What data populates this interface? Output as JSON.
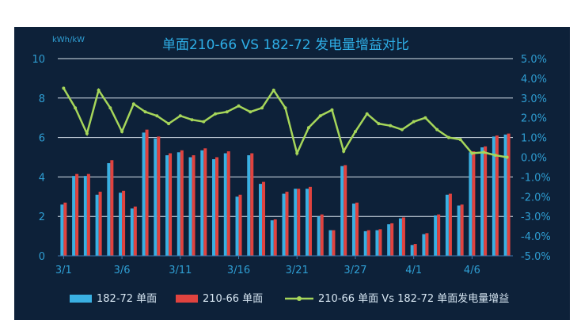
{
  "chart_data": {
    "type": "bar",
    "title": "单面210-66 VS 182-72 发电量增益对比",
    "y_unit_label": "kWh/kW",
    "ylim": [
      0,
      10
    ],
    "y_ticks": [
      "0",
      "2",
      "4",
      "6",
      "8",
      "10"
    ],
    "y2lim": [
      -5.0,
      5.0
    ],
    "y2_ticks": [
      "5.0%",
      "4.0%",
      "3.0%",
      "2.0%",
      "1.0%",
      "0.0%",
      "-1.0%",
      "-2.0%",
      "-3.0%",
      "-4.0%",
      "-5.0%"
    ],
    "x_tick_labels": [
      {
        "label": "3/1",
        "index": 0
      },
      {
        "label": "3/6",
        "index": 5
      },
      {
        "label": "3/11",
        "index": 10
      },
      {
        "label": "3/16",
        "index": 15
      },
      {
        "label": "3/21",
        "index": 20
      },
      {
        "label": "3/27",
        "index": 25
      },
      {
        "label": "4/1",
        "index": 30
      },
      {
        "label": "4/6",
        "index": 35
      }
    ],
    "grid": true,
    "legend_position": "bottom",
    "series": [
      {
        "name": "182-72 单面",
        "type": "bar",
        "axis": "left",
        "color": "#3ab0e2",
        "values": [
          2.6,
          4.05,
          4.05,
          3.1,
          4.7,
          3.2,
          2.4,
          6.25,
          5.95,
          5.1,
          5.25,
          5.0,
          5.35,
          4.9,
          5.2,
          3.0,
          5.1,
          3.65,
          1.8,
          3.15,
          3.4,
          3.4,
          2.0,
          1.3,
          4.55,
          2.65,
          1.25,
          1.3,
          1.6,
          1.9,
          0.55,
          1.1,
          2.05,
          3.1,
          2.55,
          5.25,
          5.5,
          6.05,
          6.15
        ]
      },
      {
        "name": "210-66 单面",
        "type": "bar",
        "axis": "left",
        "color": "#e0433f",
        "values": [
          2.7,
          4.15,
          4.15,
          3.25,
          4.85,
          3.3,
          2.5,
          6.4,
          6.05,
          5.2,
          5.35,
          5.1,
          5.45,
          5.0,
          5.3,
          3.1,
          5.2,
          3.75,
          1.85,
          3.25,
          3.4,
          3.5,
          2.1,
          1.3,
          4.6,
          2.7,
          1.3,
          1.35,
          1.65,
          1.95,
          0.6,
          1.15,
          2.1,
          3.15,
          2.6,
          5.3,
          5.55,
          6.1,
          6.2
        ]
      },
      {
        "name": "210-66 单面 Vs 182-72 单面发电量增益",
        "type": "line",
        "axis": "right",
        "unit": "%",
        "color": "#a6d65a",
        "values": [
          3.5,
          2.5,
          1.2,
          3.4,
          2.5,
          1.3,
          2.7,
          2.3,
          2.1,
          1.7,
          2.1,
          1.9,
          1.8,
          2.2,
          2.3,
          2.6,
          2.3,
          2.5,
          3.4,
          2.5,
          0.2,
          1.5,
          2.1,
          2.4,
          0.3,
          1.3,
          2.2,
          1.7,
          1.6,
          1.4,
          1.8,
          2.0,
          1.4,
          1.0,
          0.9,
          0.2,
          0.25,
          0.1,
          0.0
        ]
      }
    ]
  }
}
